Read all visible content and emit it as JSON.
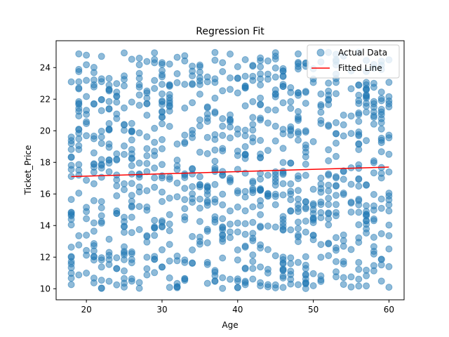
{
  "chart_data": {
    "type": "scatter",
    "title": "Regression Fit",
    "xlabel": "Age",
    "ylabel": "Ticket_Price",
    "xlim": [
      16,
      62
    ],
    "ylim": [
      9.3,
      25.7
    ],
    "xticks": [
      20,
      30,
      40,
      50,
      60
    ],
    "yticks": [
      10,
      12,
      14,
      16,
      18,
      20,
      22,
      24
    ],
    "grid": false,
    "legend": {
      "placement": "top-right",
      "entries": [
        "Actual Data",
        "Fitted Line"
      ]
    },
    "ages": [
      18,
      60
    ],
    "point_count": 1000,
    "price_range": [
      10,
      25
    ],
    "series": [
      {
        "name": "Actual Data",
        "kind": "scatter",
        "color": "#1f77b4",
        "alpha": 0.5
      },
      {
        "name": "Fitted Line",
        "kind": "line",
        "color": "#ff0000",
        "x": [
          18,
          60
        ],
        "y": [
          17.1,
          17.7
        ]
      }
    ]
  }
}
